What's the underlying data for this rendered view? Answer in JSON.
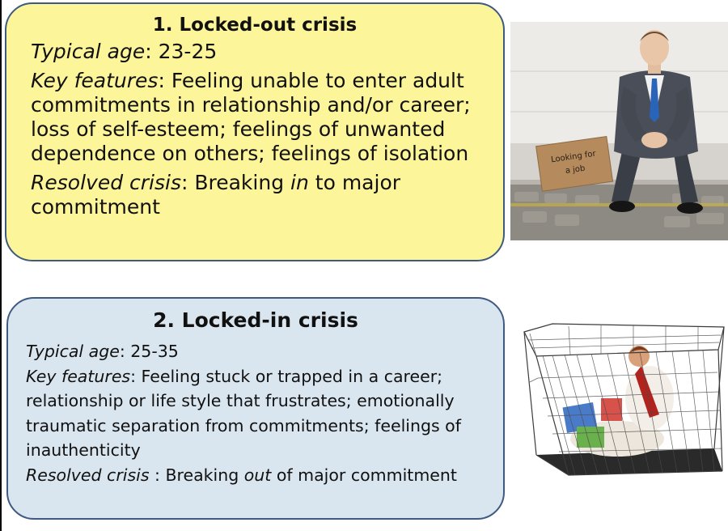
{
  "card1": {
    "title": "1. Locked-out crisis",
    "age_label": "Typical age",
    "age_value": ": 23-25",
    "features_label": "Key features",
    "features_value": ": Feeling unable to enter adult commitments in relationship and/or career; loss of self-esteem; feelings of unwanted dependence on others; feelings of isolation",
    "resolved_label": "Resolved crisis",
    "resolved_pre": ": Breaking ",
    "resolved_em": "in",
    "resolved_post": " to major commitment"
  },
  "card2": {
    "title": "2. Locked-in crisis",
    "age_label": "Typical age",
    "age_value": ": 25-35",
    "features_label": "Key features",
    "features_value": ": Feeling stuck or trapped in a career; relationship or life style that frustrates; emotionally traumatic separation from commitments; feelings of inauthenticity",
    "resolved_label": "Resolved crisis",
    "resolved_pre": " : Breaking ",
    "resolved_em": "out",
    "resolved_post": " of major commitment"
  },
  "photo1": {
    "sign_line1": "Looking for",
    "sign_line2": "a job"
  },
  "colors": {
    "card1_bg": "#fdf59a",
    "card2_bg": "#dae6ef",
    "border": "#3e5a80"
  }
}
